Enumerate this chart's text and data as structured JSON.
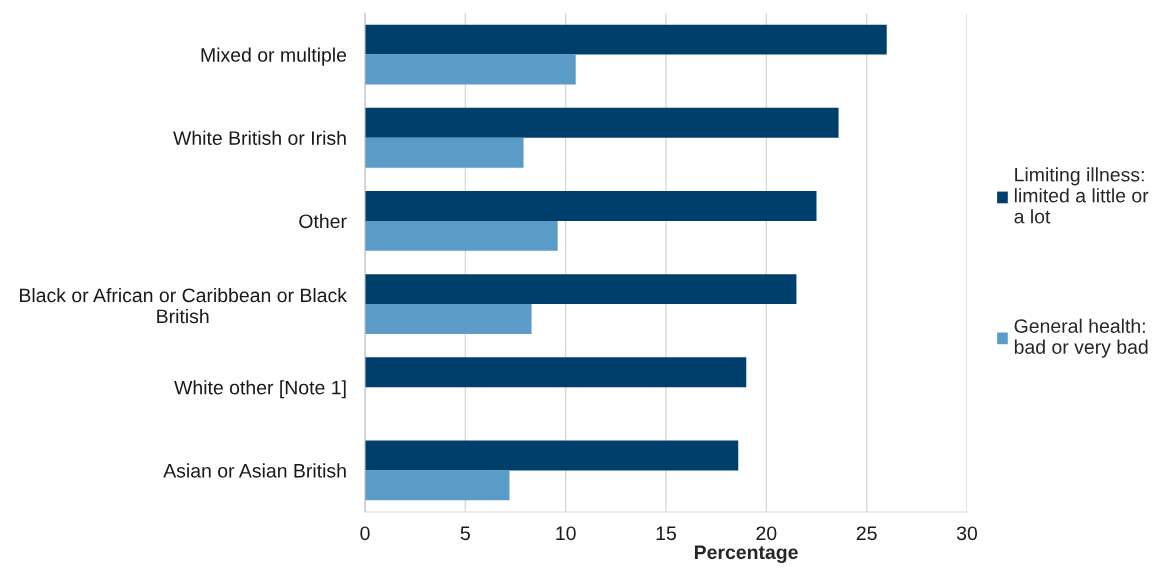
{
  "chart_data": {
    "type": "bar",
    "orientation": "horizontal",
    "xlabel": "Percentage",
    "categories": [
      "Mixed or multiple",
      "White British or Irish",
      "Other",
      "Black or African or Caribbean or Black British",
      "White other [Note 1]",
      "Asian or Asian British"
    ],
    "series": [
      {
        "name": "Limiting illness: limited a little or a lot",
        "color": "#003f6c",
        "values": [
          26.0,
          23.6,
          22.5,
          21.5,
          19.0,
          18.6
        ]
      },
      {
        "name": "General health: bad or very bad",
        "color": "#5b9bc8",
        "values": [
          10.5,
          7.9,
          9.6,
          8.3,
          null,
          7.2
        ]
      }
    ],
    "xlim": [
      0,
      30
    ],
    "xticks": [
      0,
      5,
      10,
      15,
      20,
      25,
      30
    ],
    "grid": "x",
    "legend": "right"
  }
}
